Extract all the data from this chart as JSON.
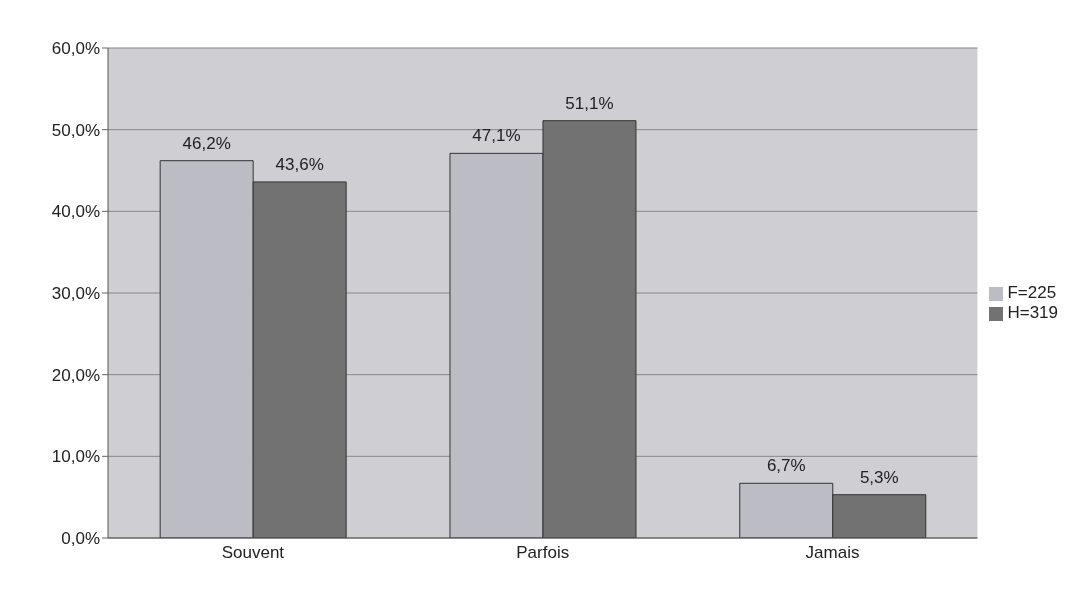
{
  "chart_data": {
    "type": "bar",
    "categories": [
      "Souvent",
      "Parfois",
      "Jamais"
    ],
    "series": [
      {
        "name": "F=225",
        "color": "#bcbcc4",
        "values": [
          46.2,
          47.1,
          6.7
        ],
        "value_labels": [
          "46,2%",
          "47,1%",
          "6,7%"
        ]
      },
      {
        "name": "H=319",
        "color": "#727272",
        "values": [
          43.6,
          51.1,
          5.3
        ],
        "value_labels": [
          "43,6%",
          "51,1%",
          "5,3%"
        ]
      }
    ],
    "ylim": [
      0,
      60
    ],
    "yticks": [
      {
        "value": 0,
        "label": "0,0%"
      },
      {
        "value": 10,
        "label": "10,0%"
      },
      {
        "value": 20,
        "label": "20,0%"
      },
      {
        "value": 30,
        "label": "30,0%"
      },
      {
        "value": 40,
        "label": "40,0%"
      },
      {
        "value": 50,
        "label": "50,0%"
      },
      {
        "value": 60,
        "label": "60,0%"
      }
    ],
    "grid": "y",
    "legend": "right"
  }
}
